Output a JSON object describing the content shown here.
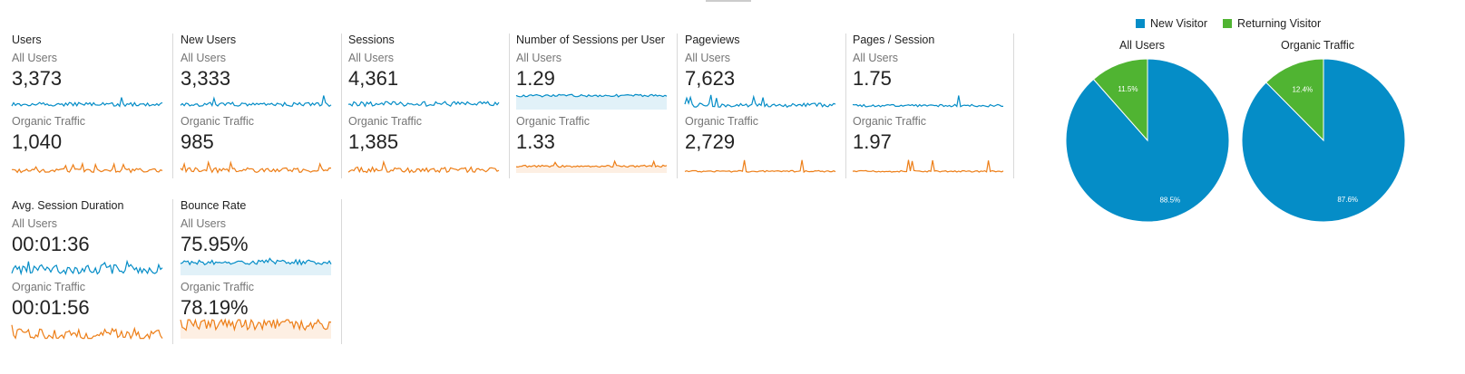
{
  "colors": {
    "all_users": "#058dc7",
    "organic_traffic": "#ed7e17",
    "new_visitor": "#058dc7",
    "returning_visitor": "#50b432"
  },
  "metrics": [
    {
      "title": "Users",
      "segments": [
        {
          "label": "All Users",
          "value": "3,373"
        },
        {
          "label": "Organic Traffic",
          "value": "1,040"
        }
      ]
    },
    {
      "title": "New Users",
      "segments": [
        {
          "label": "All Users",
          "value": "3,333"
        },
        {
          "label": "Organic Traffic",
          "value": "985"
        }
      ]
    },
    {
      "title": "Sessions",
      "segments": [
        {
          "label": "All Users",
          "value": "4,361"
        },
        {
          "label": "Organic Traffic",
          "value": "1,385"
        }
      ]
    },
    {
      "title": "Number of Sessions per User",
      "segments": [
        {
          "label": "All Users",
          "value": "1.29"
        },
        {
          "label": "Organic Traffic",
          "value": "1.33"
        }
      ]
    },
    {
      "title": "Pageviews",
      "segments": [
        {
          "label": "All Users",
          "value": "7,623"
        },
        {
          "label": "Organic Traffic",
          "value": "2,729"
        }
      ]
    },
    {
      "title": "Pages / Session",
      "segments": [
        {
          "label": "All Users",
          "value": "1.75"
        },
        {
          "label": "Organic Traffic",
          "value": "1.97"
        }
      ]
    },
    {
      "title": "Avg. Session Duration",
      "segments": [
        {
          "label": "All Users",
          "value": "00:01:36"
        },
        {
          "label": "Organic Traffic",
          "value": "00:01:56"
        }
      ]
    },
    {
      "title": "Bounce Rate",
      "segments": [
        {
          "label": "All Users",
          "value": "75.95%"
        },
        {
          "label": "Organic Traffic",
          "value": "78.19%"
        }
      ]
    }
  ],
  "chart_data": {
    "type": "pie",
    "legend": [
      "New Visitor",
      "Returning Visitor"
    ],
    "legend_position": "top",
    "charts": [
      {
        "title": "All Users",
        "slices": [
          {
            "name": "New Visitor",
            "value": 88.5,
            "label": "88.5%"
          },
          {
            "name": "Returning Visitor",
            "value": 11.5,
            "label": "11.5%"
          }
        ]
      },
      {
        "title": "Organic Traffic",
        "slices": [
          {
            "name": "New Visitor",
            "value": 87.6,
            "label": "87.6%"
          },
          {
            "name": "Returning Visitor",
            "value": 12.4,
            "label": "12.4%"
          }
        ]
      }
    ]
  }
}
